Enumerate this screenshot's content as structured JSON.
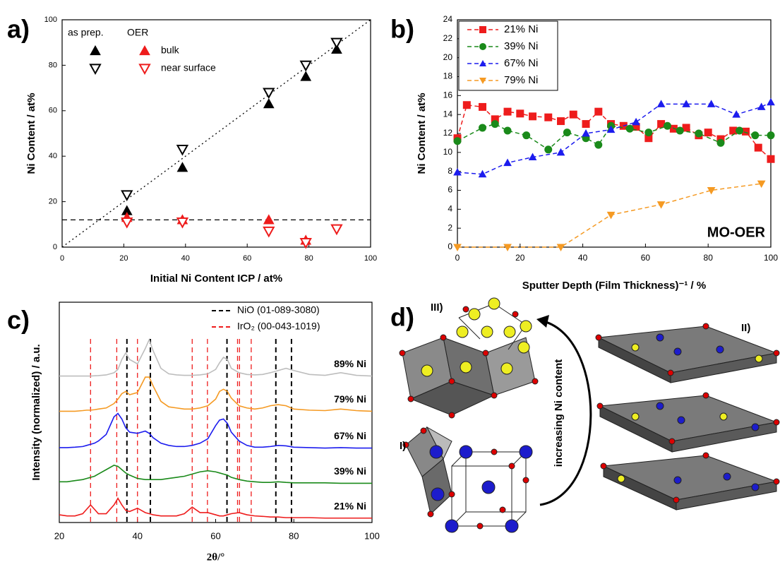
{
  "chart_data": [
    {
      "type": "scatter",
      "panel_label": "a)",
      "xlabel": "Initial Ni Content ICP / at%",
      "ylabel": "Ni Content / at%",
      "xlim": [
        0,
        100
      ],
      "ylim": [
        0,
        100
      ],
      "xticks": [
        0,
        20,
        40,
        60,
        80,
        100
      ],
      "yticks": [
        0,
        20,
        40,
        60,
        80,
        100
      ],
      "legend": {
        "headers": [
          "as prep.",
          "OER"
        ],
        "rows": [
          "bulk",
          "near surface"
        ]
      },
      "series": [
        {
          "legend_col": 0,
          "legend_row": 0,
          "color": "#000000",
          "marker": "triangle-up",
          "filled": true,
          "x": [
            21,
            39,
            67,
            79,
            89
          ],
          "values": [
            16,
            35,
            63,
            75,
            87
          ]
        },
        {
          "legend_col": 0,
          "legend_row": 1,
          "color": "#000000",
          "marker": "triangle-down",
          "filled": false,
          "x": [
            21,
            39,
            67,
            79,
            89
          ],
          "values": [
            23,
            43,
            68,
            80,
            90
          ]
        },
        {
          "legend_col": 1,
          "legend_row": 0,
          "color": "#ee1c1c",
          "marker": "triangle-up",
          "filled": true,
          "x": [
            21,
            39,
            67,
            79
          ],
          "values": [
            13,
            12,
            12,
            3
          ]
        },
        {
          "legend_col": 1,
          "legend_row": 1,
          "color": "#ee1c1c",
          "marker": "triangle-down",
          "filled": false,
          "x": [
            21,
            39,
            67,
            79,
            89
          ],
          "values": [
            11,
            11,
            7,
            2,
            8
          ]
        }
      ],
      "reference_lines": [
        {
          "style": "dotted",
          "x": [
            0,
            100
          ],
          "y": [
            0,
            100
          ]
        },
        {
          "style": "dashed",
          "y": 12
        }
      ]
    },
    {
      "type": "line",
      "panel_label": "b)",
      "xlabel": "Sputter Depth (Film Thickness)⁻¹ / %",
      "ylabel": "Ni Content / at%",
      "xlim": [
        0,
        100
      ],
      "ylim": [
        0,
        24
      ],
      "xticks": [
        0,
        20,
        40,
        60,
        80,
        100
      ],
      "yticks": [
        0,
        2,
        4,
        6,
        8,
        10,
        12,
        14,
        16,
        18,
        20,
        22,
        24
      ],
      "legend": "upper left",
      "annotation": "MO-OER",
      "series": [
        {
          "name": "21% Ni",
          "color": "#ee1c1c",
          "marker": "square",
          "dash": true,
          "x": [
            0,
            3,
            8,
            12,
            16,
            20,
            24,
            29,
            33,
            37,
            41,
            45,
            49,
            53,
            57,
            61,
            65,
            69,
            73,
            77,
            80,
            84,
            88,
            92,
            96,
            100
          ],
          "values": [
            11.5,
            15,
            14.8,
            13.5,
            14.3,
            14.1,
            13.8,
            13.7,
            13.3,
            14,
            13,
            14.3,
            13,
            12.8,
            12.7,
            11.5,
            13,
            12.5,
            12.6,
            11.8,
            12.1,
            11.4,
            12.3,
            12.2,
            10.5,
            9.3
          ]
        },
        {
          "name": "39% Ni",
          "color": "#1a8a1a",
          "marker": "circle",
          "dash": true,
          "x": [
            0,
            8,
            12,
            16,
            22,
            29,
            35,
            41,
            45,
            49,
            55,
            61,
            67,
            71,
            77,
            84,
            90,
            95,
            100
          ],
          "values": [
            11.2,
            12.6,
            13,
            12.3,
            11.8,
            10.3,
            12.1,
            11.5,
            10.8,
            12.8,
            12.5,
            12.1,
            12.8,
            12.3,
            12,
            11,
            12.3,
            11.8,
            11.8
          ]
        },
        {
          "name": "67% Ni",
          "color": "#1c1cee",
          "marker": "triangle-up",
          "dash": true,
          "x": [
            0,
            8,
            16,
            24,
            33,
            41,
            49,
            57,
            65,
            73,
            81,
            89,
            97,
            100
          ],
          "values": [
            7.9,
            7.7,
            8.9,
            9.5,
            10,
            12,
            12.4,
            13.2,
            15.1,
            15.1,
            15.1,
            14,
            14.8,
            15.3
          ]
        },
        {
          "name": "79% Ni",
          "color": "#f59a23",
          "marker": "triangle-down",
          "dash": true,
          "x": [
            0,
            16,
            33,
            49,
            65,
            81,
            97
          ],
          "values": [
            0,
            0,
            0,
            3.4,
            4.5,
            6,
            6.7
          ]
        }
      ]
    },
    {
      "type": "spectra",
      "panel_label": "c)",
      "xlabel": "2θ/°",
      "ylabel": "Intensity (normalized) / a.u.",
      "xlim": [
        20,
        100
      ],
      "ylim": [
        0,
        10
      ],
      "xticks": [
        20,
        40,
        60,
        80,
        100
      ],
      "x": [
        20,
        22,
        24,
        26,
        27,
        28,
        29,
        30,
        32,
        34,
        35,
        36,
        37,
        38,
        40,
        42,
        43,
        44,
        46,
        48,
        50,
        52,
        54,
        56,
        58,
        60,
        61,
        62,
        63,
        64,
        66,
        68,
        70,
        72,
        74,
        76,
        78,
        80,
        84,
        88,
        92,
        96,
        100
      ],
      "series": [
        {
          "name": "21% Ni",
          "color": "#ee1c1c",
          "values": [
            0.35,
            0.3,
            0.3,
            0.4,
            0.6,
            0.8,
            0.6,
            0.4,
            0.4,
            0.8,
            1.1,
            0.8,
            0.55,
            0.5,
            0.65,
            0.45,
            0.4,
            0.35,
            0.3,
            0.3,
            0.3,
            0.4,
            0.7,
            0.45,
            0.45,
            0.35,
            0.3,
            0.3,
            0.35,
            0.4,
            0.45,
            0.35,
            0.3,
            0.28,
            0.25,
            0.25,
            0.22,
            0.22,
            0.22,
            0.2,
            0.2,
            0.2,
            0.2
          ]
        },
        {
          "name": "39% Ni",
          "color": "#1a8a1a",
          "values": [
            1.85,
            1.85,
            1.9,
            1.95,
            2.0,
            2.05,
            2.1,
            2.2,
            2.4,
            2.6,
            2.55,
            2.4,
            2.25,
            2.15,
            2.0,
            1.95,
            1.95,
            1.95,
            1.95,
            2.0,
            2.05,
            2.1,
            2.2,
            2.3,
            2.35,
            2.3,
            2.25,
            2.2,
            2.15,
            2.05,
            1.95,
            1.88,
            1.85,
            1.82,
            1.82,
            1.85,
            1.82,
            1.8,
            1.8,
            1.8,
            1.78,
            1.78,
            1.78
          ]
        },
        {
          "name": "67% Ni",
          "color": "#1c1cee",
          "values": [
            3.4,
            3.4,
            3.42,
            3.45,
            3.5,
            3.55,
            3.6,
            3.7,
            4.0,
            4.8,
            4.95,
            4.7,
            4.3,
            4.1,
            4.05,
            4.15,
            4.05,
            3.85,
            3.6,
            3.5,
            3.45,
            3.45,
            3.5,
            3.6,
            3.8,
            4.4,
            4.65,
            4.7,
            4.5,
            4.1,
            3.7,
            3.5,
            3.42,
            3.42,
            3.45,
            3.5,
            3.48,
            3.42,
            3.4,
            3.38,
            3.4,
            3.38,
            3.38
          ]
        },
        {
          "name": "79% Ni",
          "color": "#f59a23",
          "values": [
            5.05,
            5.05,
            5.05,
            5.08,
            5.1,
            5.1,
            5.12,
            5.15,
            5.2,
            5.4,
            5.6,
            5.85,
            5.95,
            5.8,
            5.9,
            6.6,
            6.6,
            6.2,
            5.5,
            5.25,
            5.2,
            5.15,
            5.15,
            5.2,
            5.3,
            5.6,
            5.95,
            6.05,
            5.95,
            5.65,
            5.3,
            5.2,
            5.15,
            5.2,
            5.3,
            5.35,
            5.3,
            5.15,
            5.1,
            5.08,
            5.15,
            5.08,
            5.05
          ]
        },
        {
          "name": "89% Ni",
          "color": "#bdbdbd",
          "values": [
            6.65,
            6.65,
            6.65,
            6.65,
            6.65,
            6.65,
            6.66,
            6.67,
            6.7,
            6.8,
            6.95,
            7.4,
            7.7,
            7.4,
            7.2,
            7.9,
            8.3,
            7.8,
            7.0,
            6.75,
            6.7,
            6.68,
            6.68,
            6.7,
            6.75,
            6.95,
            7.25,
            7.5,
            7.4,
            7.0,
            6.8,
            6.72,
            6.7,
            6.72,
            6.8,
            6.9,
            7.0,
            6.9,
            6.72,
            6.68,
            6.8,
            6.68,
            6.65
          ]
        }
      ],
      "reference_lines": [
        {
          "name": "NiO (01-089-3080)",
          "color": "#000000",
          "positions": [
            37.3,
            43.3,
            62.9,
            75.4,
            79.4
          ]
        },
        {
          "name": "IrO₂ (00-043-1019)",
          "color": "#ee1c1c",
          "positions": [
            28.0,
            34.7,
            40.0,
            54.0,
            57.9,
            65.6,
            66.1,
            69.1
          ]
        }
      ]
    }
  ],
  "diagram": {
    "panel_label": "d)",
    "structure_labels": [
      "I)",
      "II)",
      "III)"
    ],
    "arrow_label": "increasing Ni content"
  }
}
